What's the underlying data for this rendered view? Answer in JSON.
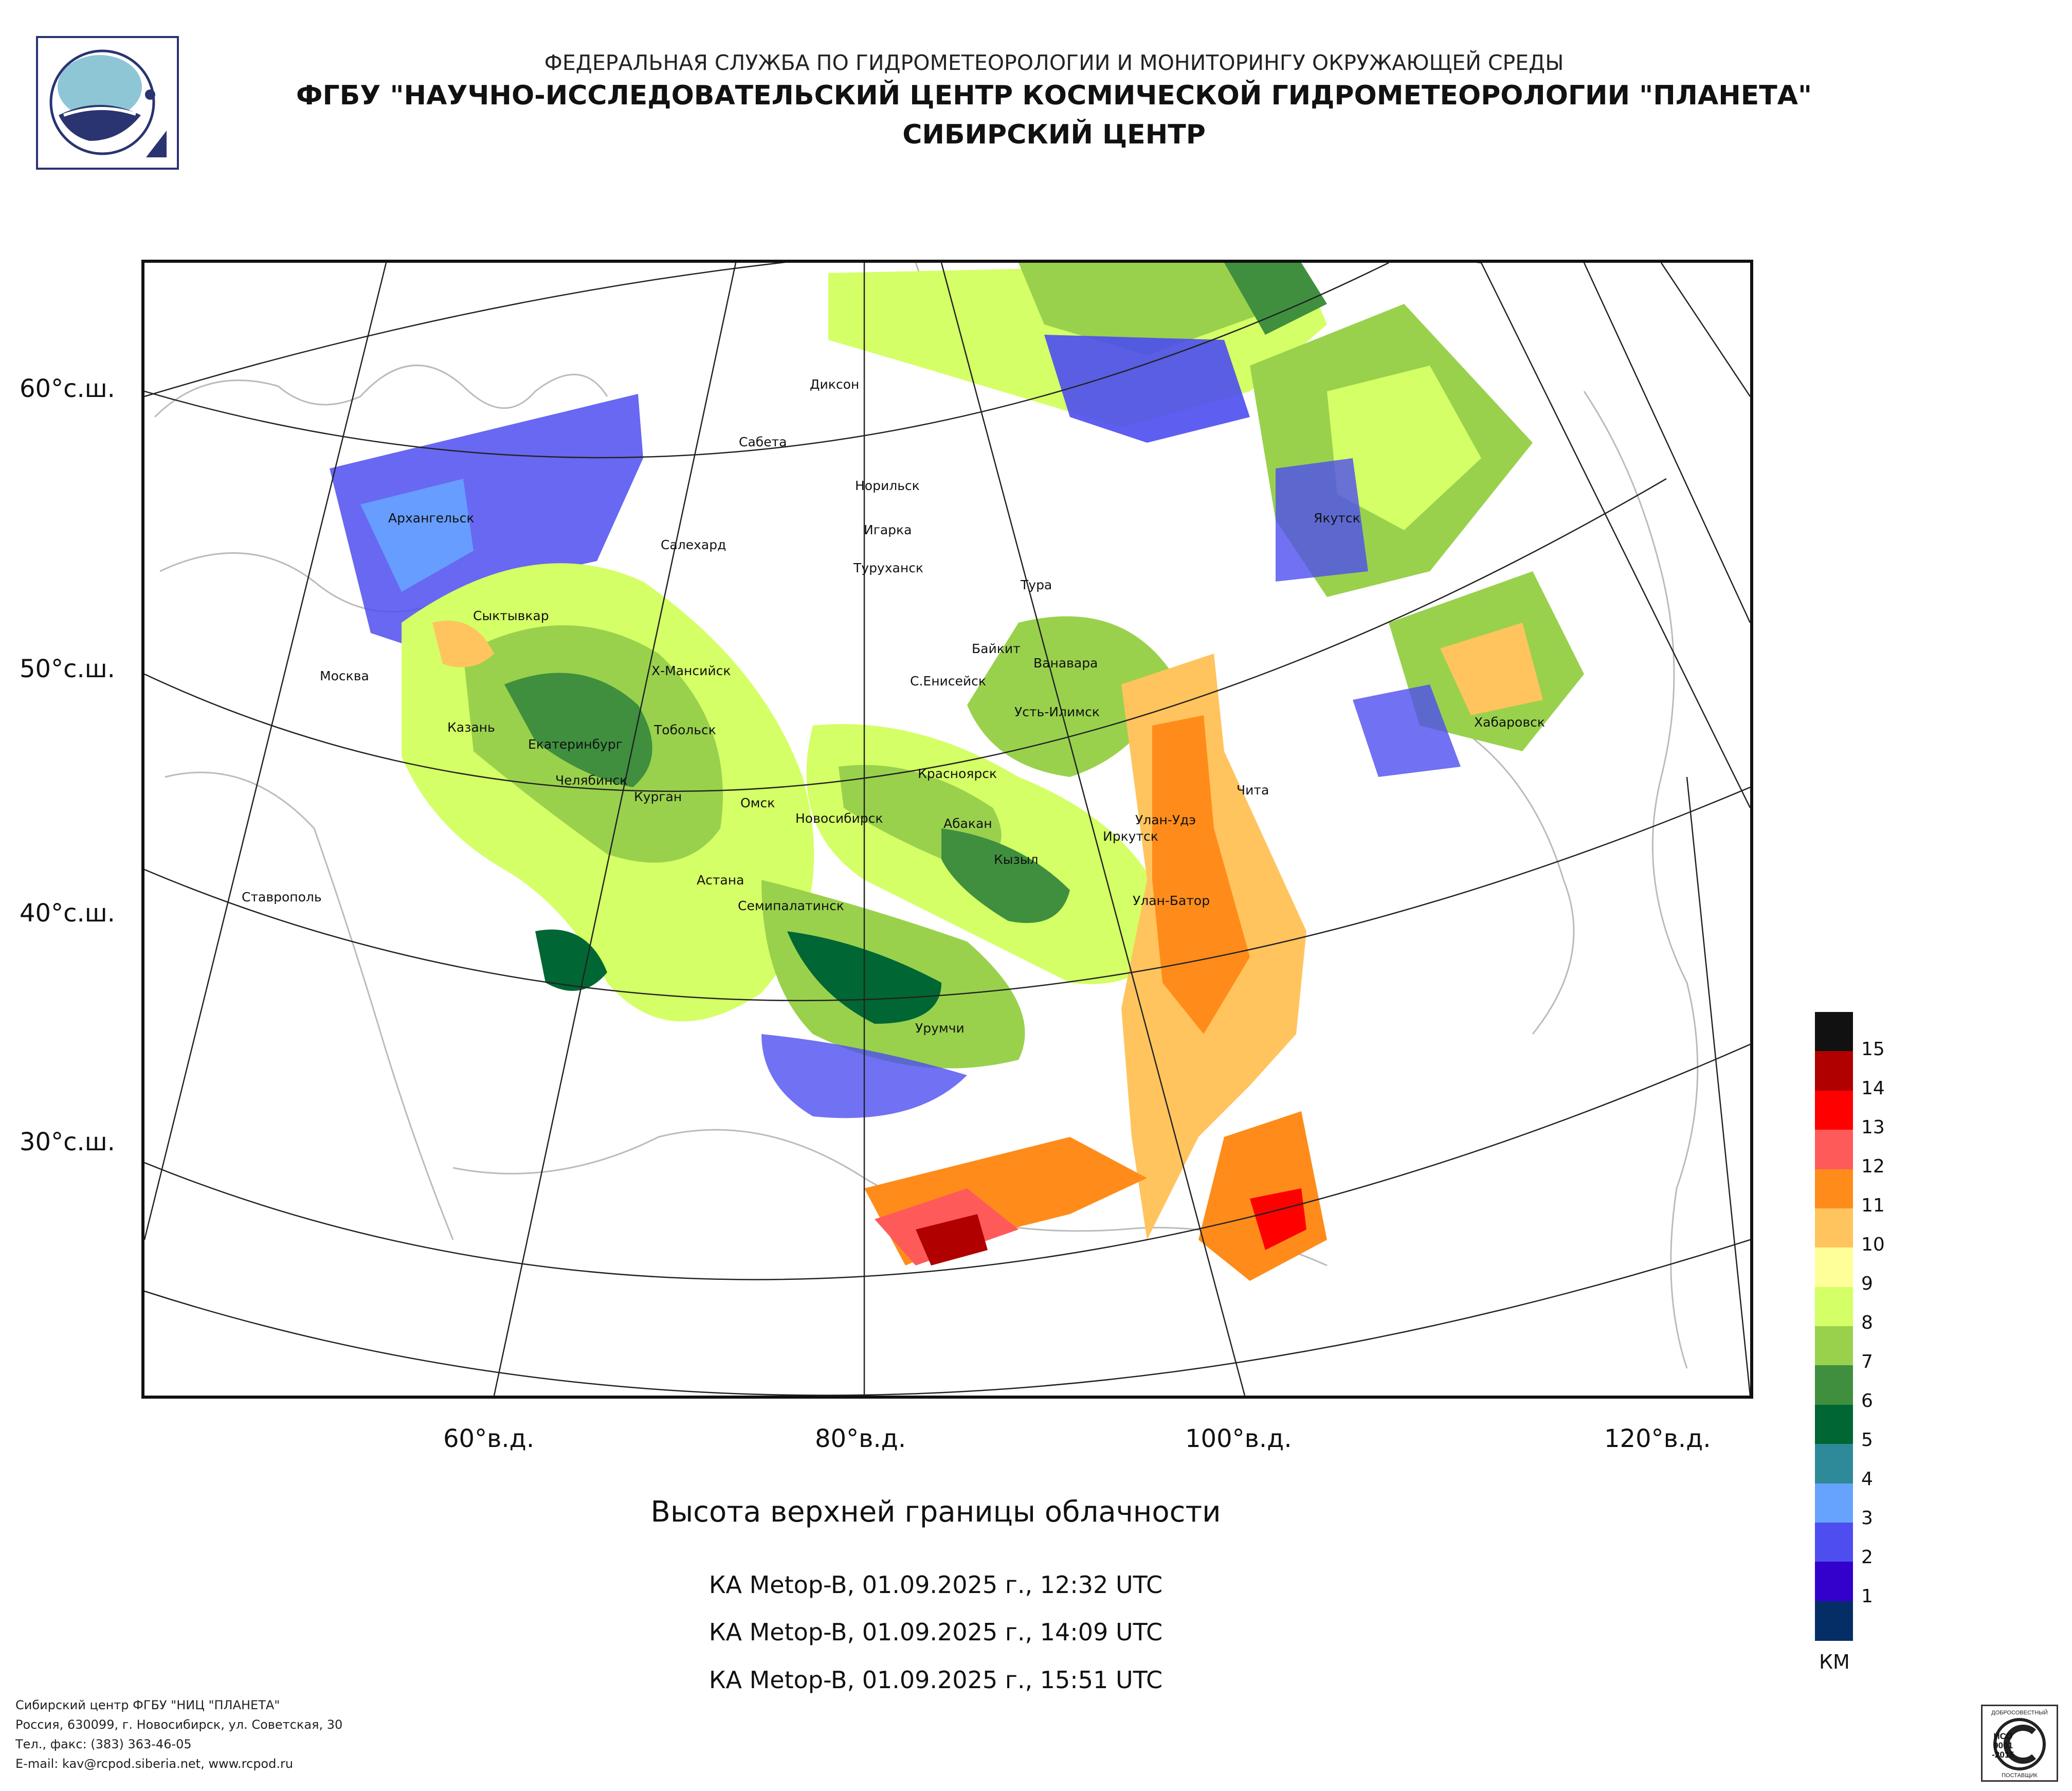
{
  "header": {
    "agency": "ФЕДЕРАЛЬНАЯ СЛУЖБА ПО ГИДРОМЕТЕОРОЛОГИИ И МОНИТОРИНГУ ОКРУЖАЮЩЕЙ СРЕДЫ",
    "institute": "ФГБУ \"НАУЧНО-ИССЛЕДОВАТЕЛЬСКИЙ ЦЕНТР КОСМИЧЕСКОЙ ГИДРОМЕТЕОРОЛОГИИ \"ПЛАНЕТА\"",
    "center": "СИБИРСКИЙ ЦЕНТР"
  },
  "map": {
    "lat_labels": [
      "60°с.ш.",
      "50°с.ш.",
      "40°с.ш.",
      "30°с.ш."
    ],
    "lon_labels": [
      "60°в.д.",
      "80°в.д.",
      "100°в.д.",
      "120°в.д."
    ],
    "cities": [
      "Диксон",
      "Сабета",
      "Норильск",
      "Игарка",
      "Туруханск",
      "Архангельск",
      "Салехард",
      "Якутск",
      "Тура",
      "Сыктывкар",
      "Байкит",
      "Ванавара",
      "Х-Мансийск",
      "Москва",
      "С.Енисейск",
      "Усть-Илимск",
      "Тобольск",
      "Казань",
      "Екатеринбург",
      "Хабаровск",
      "Красноярск",
      "Челябинск",
      "Курган",
      "Омск",
      "Чита",
      "Новосибирск",
      "Абакан",
      "Улан-Удэ",
      "Иркутск",
      "Кызыл",
      "Астана",
      "Ставрополь",
      "Семипалатинск",
      "Улан-Батор",
      "Урумчи"
    ]
  },
  "legend": {
    "unit": "КМ",
    "levels": [
      {
        "value": "",
        "color": "#111111"
      },
      {
        "value": "15",
        "color": "#b00000"
      },
      {
        "value": "14",
        "color": "#ff0000"
      },
      {
        "value": "13",
        "color": "#ff5a5a"
      },
      {
        "value": "12",
        "color": "#ff8c1a"
      },
      {
        "value": "11",
        "color": "#ffc45e"
      },
      {
        "value": "10",
        "color": "#ffff99"
      },
      {
        "value": "9",
        "color": "#d4ff66"
      },
      {
        "value": "8",
        "color": "#99d14d"
      },
      {
        "value": "7",
        "color": "#3f8f3f"
      },
      {
        "value": "6",
        "color": "#006633"
      },
      {
        "value": "5",
        "color": "#2e8a99"
      },
      {
        "value": "4",
        "color": "#66a3ff"
      },
      {
        "value": "3",
        "color": "#4d4df0"
      },
      {
        "value": "2",
        "color": "#3300cc"
      },
      {
        "value": "1",
        "color": "#062e66"
      }
    ]
  },
  "title": "Высота верхней границы облачности",
  "passes": [
    "КА Metop-B, 01.09.2025 г., 12:32 UTC",
    "КА Metop-B, 01.09.2025 г., 14:09 UTC",
    "КА Metop-B, 01.09.2025 г., 15:51 UTC"
  ],
  "footer": [
    "Сибирский центр ФГБУ \"НИЦ \"ПЛАНЕТА\"",
    "Россия, 630099, г. Новосибирск, ул. Советская, 30",
    "Тел., факс: (383) 363-46-05",
    "E-mail: kav@rcpod.siberia.net, www.rcpod.ru"
  ],
  "certificate": [
    "ДОБРОСОВЕСТНЫЙ",
    "ИСО",
    "9001",
    "-2015",
    "ПОСТАВЩИК"
  ]
}
